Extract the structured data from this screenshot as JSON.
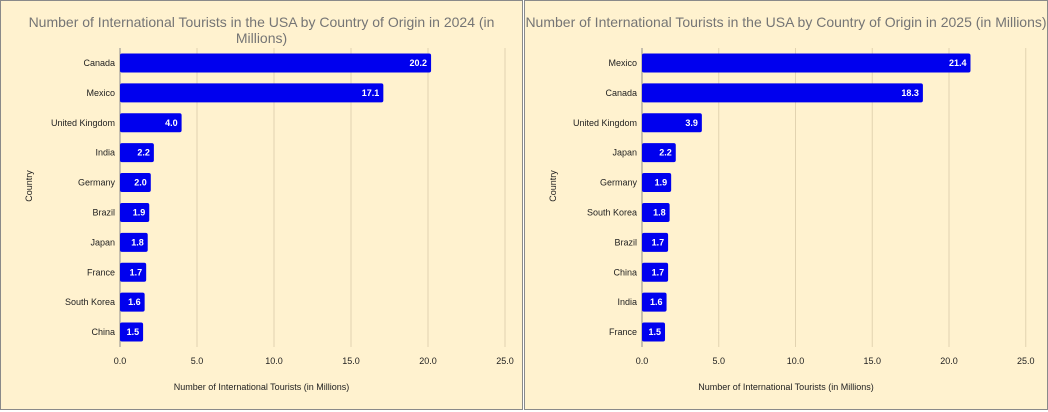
{
  "chart_data": [
    {
      "type": "bar",
      "orientation": "horizontal",
      "title": "Number of International Tourists in the USA by Country of Origin in 2024 (in Millions)",
      "xlabel": "Number of International Tourists (in Millions)",
      "ylabel": "Country",
      "categories": [
        "Canada",
        "Mexico",
        "United Kingdom",
        "India",
        "Germany",
        "Brazil",
        "Japan",
        "France",
        "South Korea",
        "China"
      ],
      "values": [
        20.2,
        17.1,
        4.0,
        2.2,
        2.0,
        1.9,
        1.8,
        1.7,
        1.6,
        1.5
      ],
      "value_labels": [
        "20.2",
        "17.1",
        "4.0",
        "2.2",
        "2.0",
        "1.9",
        "1.8",
        "1.7",
        "1.6",
        "1.5"
      ],
      "xlim": [
        0,
        25
      ],
      "xticks": [
        0,
        5,
        10,
        15,
        20,
        25
      ],
      "xtick_labels": [
        "0.0",
        "5.0",
        "10.0",
        "15.0",
        "20.0",
        "25.0"
      ],
      "grid": "vertical",
      "bar_color": "#0000ee",
      "background": "#fff2cf",
      "grid_color": "#e2d3b0"
    },
    {
      "type": "bar",
      "orientation": "horizontal",
      "title": "Number of International Tourists in the USA by Country of Origin in 2025 (in Millions)",
      "xlabel": "Number of International Tourists (in Millions)",
      "ylabel": "Country",
      "categories": [
        "Mexico",
        "Canada",
        "United Kingdom",
        "Japan",
        "Germany",
        "South Korea",
        "Brazil",
        "China",
        "India",
        "France"
      ],
      "values": [
        21.4,
        18.3,
        3.9,
        2.2,
        1.9,
        1.8,
        1.7,
        1.7,
        1.6,
        1.5
      ],
      "value_labels": [
        "21.4",
        "18.3",
        "3.9",
        "2.2",
        "1.9",
        "1.8",
        "1.7",
        "1.7",
        "1.6",
        "1.5"
      ],
      "xlim": [
        0,
        25
      ],
      "xticks": [
        0,
        5,
        10,
        15,
        20,
        25
      ],
      "xtick_labels": [
        "0.0",
        "5.0",
        "10.0",
        "15.0",
        "20.0",
        "25.0"
      ],
      "grid": "vertical",
      "bar_color": "#0000ee",
      "background": "#fff2cf",
      "grid_color": "#e2d3b0"
    }
  ]
}
